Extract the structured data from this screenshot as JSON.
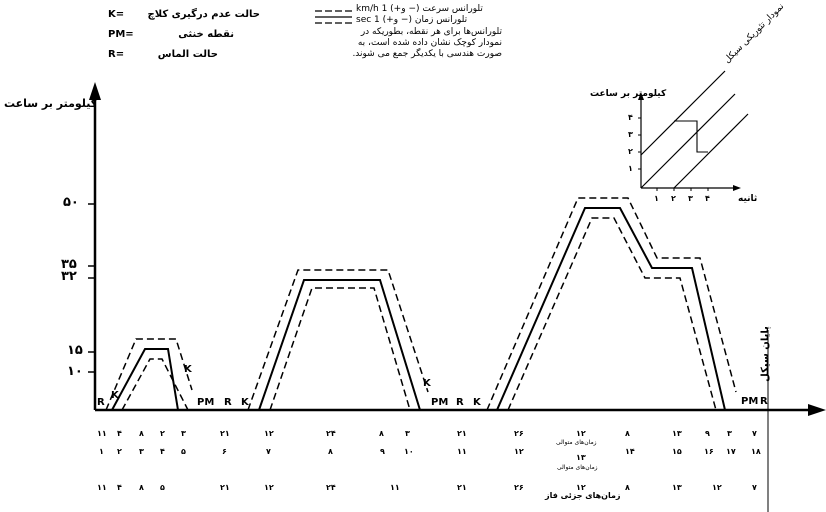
{
  "legend": {
    "abbreviations": [
      {
        "key": "K=",
        "text": "حالت عدم درگیری کلاچ"
      },
      {
        "key": "PM=",
        "text": "نقطه خنثی"
      },
      {
        "key": "R=",
        "text": "حالت الماس"
      }
    ],
    "tolerance_speed": "km/h 1 (+و −) تلورانس سرعت",
    "tolerance_time": "sec 1 (+و −) تلورانس زمان",
    "note_lines": [
      "تلورانس‌ها برای هر نقطه، بطوریکه در",
      "نمودار کوچک نشان داده شده است، به",
      "صورت هندسی با یکدیگر جمع می شوند."
    ]
  },
  "y_axis_label": "کیلومتر بر ساعت",
  "y_ticks": [
    "۵۰",
    "۳۵",
    "۳۲",
    "۱۵",
    "۱۰"
  ],
  "state_labels": [
    "R",
    "K",
    "K",
    "PM",
    "R",
    "K",
    "K",
    "PM",
    "R",
    "K",
    "PM",
    "R"
  ],
  "end_of_cycle": "پایان سیکل",
  "inset": {
    "ylabel": "کیلومتر بر ساعت",
    "xlabel": "ثانیه",
    "diag_label": "نمودار تئوریکی سیکل",
    "y_ticks": [
      "۴",
      "۳",
      "۲",
      "۱"
    ],
    "x_ticks": [
      "۱",
      "۲",
      "۳",
      "۴"
    ]
  },
  "rows": {
    "row1": [
      "۱۱",
      "۴",
      "۸",
      "۲",
      "۳",
      "۲۱",
      "۱۲",
      "۲۴",
      "۸",
      "۳",
      "۲۱",
      "۲۶",
      "۱۲",
      "۸",
      "۱۳",
      "۹",
      "۳",
      "۷"
    ],
    "row1_caption": "زمان‌های متوالی",
    "row2": [
      "۱",
      "۲",
      "۳",
      "۴",
      "۵",
      "۶",
      "۷",
      "۸",
      "۹",
      "۱۰",
      "۱۱",
      "۱۲",
      "۱۳",
      "۱۴",
      "۱۵",
      "۱۶",
      "۱۷",
      "۱۸"
    ],
    "row2_caption": "زمان‌های متوالی",
    "row3": [
      "۱۱",
      "۴",
      "۸",
      "۵",
      "۲۱",
      "۱۲",
      "۲۴",
      "۱۱",
      "۲۱",
      "۲۶",
      "۱۲",
      "۸",
      "۱۳",
      "۱۲",
      "۷"
    ],
    "row3_caption": "زمان‌های جزئی فاز"
  }
}
